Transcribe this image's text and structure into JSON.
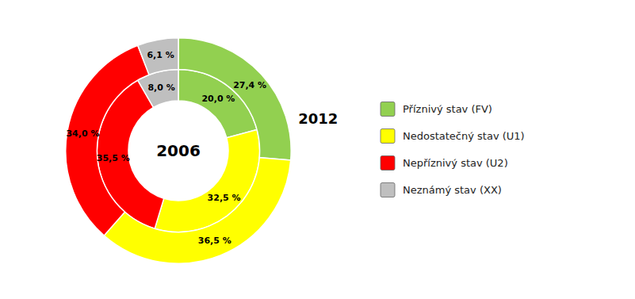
{
  "chart_data": {
    "type": "donut",
    "categories": [
      "Příznivý stav (FV)",
      "Nedostatečný stav (U1)",
      "Nepříznivý stav (U2)",
      "Neznámý stav (XX)"
    ],
    "colors": [
      "#92D050",
      "#FFFF00",
      "#FF0000",
      "#BFBFBF"
    ],
    "series": [
      {
        "name": "2006",
        "values": [
          20.0,
          32.5,
          35.5,
          8.0
        ],
        "value_labels": [
          "20,0 %",
          "32,5 %",
          "35,5 %",
          "8,0 %"
        ]
      },
      {
        "name": "2012",
        "values": [
          27.4,
          36.5,
          34.0,
          6.1
        ],
        "value_labels": [
          "27,4 %",
          "36,5 %",
          "34,0 %",
          "6,1 %"
        ]
      }
    ],
    "data_labels": true,
    "legend": "right"
  }
}
